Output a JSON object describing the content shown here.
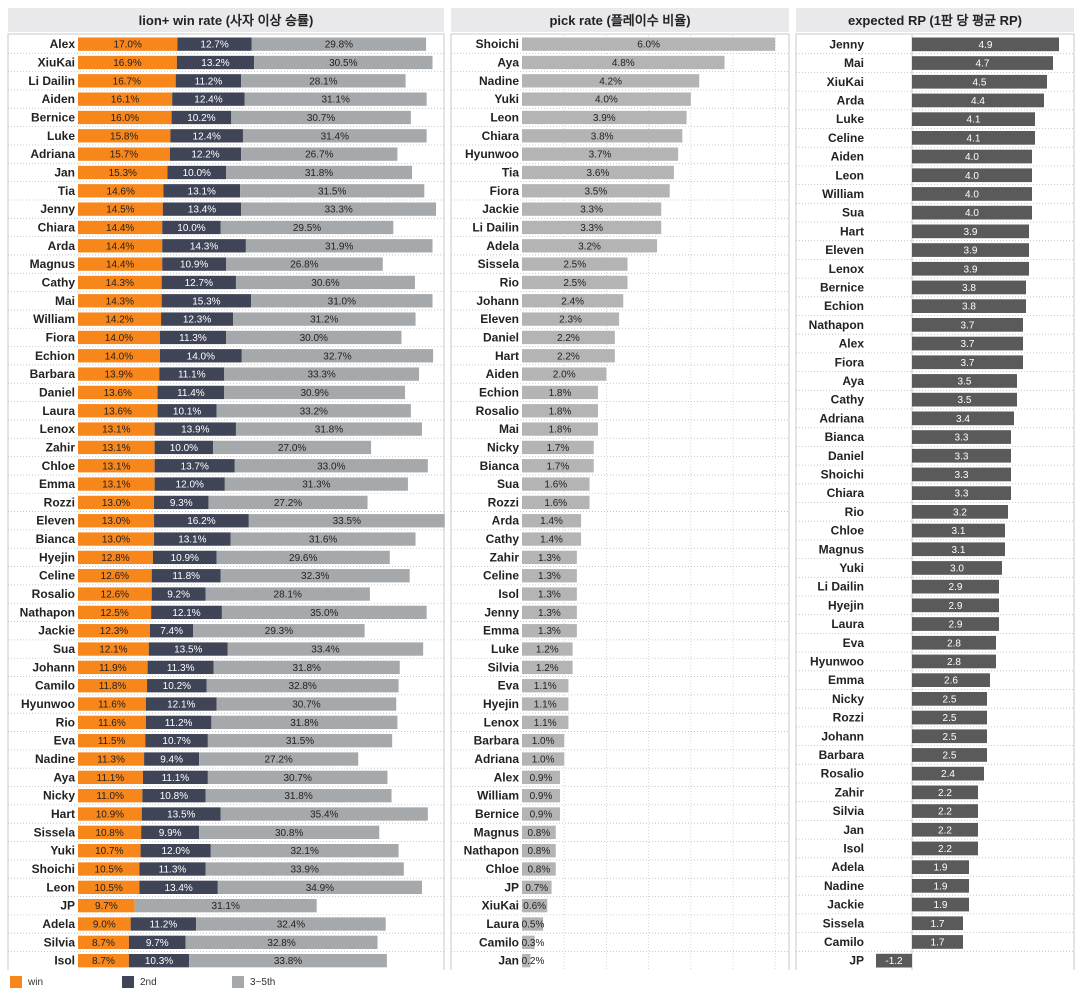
{
  "colors": {
    "win": "#F7861B",
    "second": "#3F4456",
    "third_fifth": "#A6A9AC",
    "pick": "#B4B4B4",
    "rp": "#5A5A5A",
    "header_bg": "#E9E9EC",
    "grid": "#C8C8C8"
  },
  "legend": {
    "win": "win",
    "second": "2nd",
    "third_fifth": "3~5th"
  },
  "chart_data": [
    {
      "type": "bar",
      "stacked": true,
      "orientation": "horizontal",
      "title": "lion+ win rate (사자 이상 승률)",
      "unit": "%",
      "categories": [
        "Alex",
        "XiuKai",
        "Li Dailin",
        "Aiden",
        "Bernice",
        "Luke",
        "Adriana",
        "Jan",
        "Tia",
        "Jenny",
        "Chiara",
        "Arda",
        "Magnus",
        "Cathy",
        "Mai",
        "William",
        "Fiora",
        "Echion",
        "Barbara",
        "Daniel",
        "Laura",
        "Lenox",
        "Zahir",
        "Chloe",
        "Emma",
        "Rozzi",
        "Eleven",
        "Bianca",
        "Hyejin",
        "Celine",
        "Rosalio",
        "Nathapon",
        "Jackie",
        "Sua",
        "Johann",
        "Camilo",
        "Hyunwoo",
        "Rio",
        "Eva",
        "Nadine",
        "Aya",
        "Nicky",
        "Hart",
        "Sissela",
        "Yuki",
        "Shoichi",
        "Leon",
        "JP",
        "Adela",
        "Silvia",
        "Isol"
      ],
      "series": [
        {
          "name": "win",
          "values": [
            17.0,
            16.9,
            16.7,
            16.1,
            16.0,
            15.8,
            15.7,
            15.3,
            14.6,
            14.5,
            14.4,
            14.4,
            14.4,
            14.3,
            14.3,
            14.2,
            14.0,
            14.0,
            13.9,
            13.6,
            13.6,
            13.1,
            13.1,
            13.1,
            13.1,
            13.0,
            13.0,
            13.0,
            12.8,
            12.6,
            12.6,
            12.5,
            12.3,
            12.1,
            11.9,
            11.8,
            11.6,
            11.6,
            11.5,
            11.3,
            11.1,
            11.0,
            10.9,
            10.8,
            10.7,
            10.5,
            10.5,
            9.7,
            9.0,
            8.7,
            8.7
          ]
        },
        {
          "name": "2nd",
          "values": [
            12.7,
            13.2,
            11.2,
            12.4,
            10.2,
            12.4,
            12.2,
            10.0,
            13.1,
            13.4,
            10.0,
            14.3,
            10.9,
            12.7,
            15.3,
            12.3,
            11.3,
            14.0,
            11.1,
            11.4,
            10.1,
            13.9,
            10.0,
            13.7,
            12.0,
            9.3,
            16.2,
            13.1,
            10.9,
            11.8,
            9.2,
            12.1,
            7.4,
            13.5,
            11.3,
            10.2,
            12.1,
            11.2,
            10.7,
            9.4,
            11.1,
            10.8,
            13.5,
            9.9,
            12.0,
            11.3,
            13.4,
            null,
            11.2,
            9.7,
            10.3
          ]
        },
        {
          "name": "3~5th",
          "values": [
            29.8,
            30.5,
            28.1,
            31.1,
            30.7,
            31.4,
            26.7,
            31.8,
            31.5,
            33.3,
            29.5,
            31.9,
            26.8,
            30.6,
            31.0,
            31.2,
            30.0,
            32.7,
            33.3,
            30.9,
            33.2,
            31.8,
            27.0,
            33.0,
            31.3,
            27.2,
            33.5,
            31.6,
            29.6,
            32.3,
            28.1,
            35.0,
            29.3,
            33.4,
            31.8,
            32.8,
            30.7,
            31.8,
            31.5,
            27.2,
            30.7,
            31.8,
            35.4,
            30.8,
            32.1,
            33.9,
            34.9,
            31.1,
            32.4,
            32.8,
            33.8
          ]
        }
      ]
    },
    {
      "type": "bar",
      "orientation": "horizontal",
      "title": "pick rate (플레이수 비율)",
      "unit": "%",
      "categories": [
        "Shoichi",
        "Aya",
        "Nadine",
        "Yuki",
        "Leon",
        "Chiara",
        "Hyunwoo",
        "Tia",
        "Fiora",
        "Jackie",
        "Li Dailin",
        "Adela",
        "Sissela",
        "Rio",
        "Johann",
        "Eleven",
        "Daniel",
        "Hart",
        "Aiden",
        "Echion",
        "Rosalio",
        "Mai",
        "Nicky",
        "Bianca",
        "Sua",
        "Rozzi",
        "Arda",
        "Cathy",
        "Zahir",
        "Celine",
        "Isol",
        "Jenny",
        "Emma",
        "Luke",
        "Silvia",
        "Eva",
        "Hyejin",
        "Lenox",
        "Barbara",
        "Adriana",
        "Alex",
        "William",
        "Bernice",
        "Magnus",
        "Nathapon",
        "Chloe",
        "JP",
        "XiuKai",
        "Laura",
        "Camilo",
        "Jan"
      ],
      "values": [
        6.0,
        4.8,
        4.2,
        4.0,
        3.9,
        3.8,
        3.7,
        3.6,
        3.5,
        3.3,
        3.3,
        3.2,
        2.5,
        2.5,
        2.4,
        2.3,
        2.2,
        2.2,
        2.0,
        1.8,
        1.8,
        1.8,
        1.7,
        1.7,
        1.6,
        1.6,
        1.4,
        1.4,
        1.3,
        1.3,
        1.3,
        1.3,
        1.3,
        1.2,
        1.2,
        1.1,
        1.1,
        1.1,
        1.0,
        1.0,
        0.9,
        0.9,
        0.9,
        0.8,
        0.8,
        0.8,
        0.7,
        0.6,
        0.5,
        0.3,
        0.2
      ]
    },
    {
      "type": "bar",
      "orientation": "horizontal",
      "title": "expected RP (1판 당 평균 RP)",
      "categories": [
        "Jenny",
        "Mai",
        "XiuKai",
        "Arda",
        "Luke",
        "Celine",
        "Aiden",
        "Leon",
        "William",
        "Sua",
        "Hart",
        "Eleven",
        "Lenox",
        "Bernice",
        "Echion",
        "Nathapon",
        "Alex",
        "Fiora",
        "Aya",
        "Cathy",
        "Adriana",
        "Bianca",
        "Daniel",
        "Shoichi",
        "Chiara",
        "Rio",
        "Chloe",
        "Magnus",
        "Yuki",
        "Li Dailin",
        "Hyejin",
        "Laura",
        "Eva",
        "Hyunwoo",
        "Emma",
        "Nicky",
        "Rozzi",
        "Johann",
        "Barbara",
        "Rosalio",
        "Zahir",
        "Silvia",
        "Jan",
        "Isol",
        "Adela",
        "Nadine",
        "Jackie",
        "Sissela",
        "Camilo",
        "JP"
      ],
      "values": [
        4.9,
        4.7,
        4.5,
        4.4,
        4.1,
        4.1,
        4.0,
        4.0,
        4.0,
        4.0,
        3.9,
        3.9,
        3.9,
        3.8,
        3.8,
        3.7,
        3.7,
        3.7,
        3.5,
        3.5,
        3.4,
        3.3,
        3.3,
        3.3,
        3.3,
        3.2,
        3.1,
        3.1,
        3.0,
        2.9,
        2.9,
        2.9,
        2.8,
        2.8,
        2.6,
        2.5,
        2.5,
        2.5,
        2.5,
        2.4,
        2.2,
        2.2,
        2.2,
        2.2,
        1.9,
        1.9,
        1.9,
        1.7,
        1.7,
        -1.2
      ]
    }
  ]
}
